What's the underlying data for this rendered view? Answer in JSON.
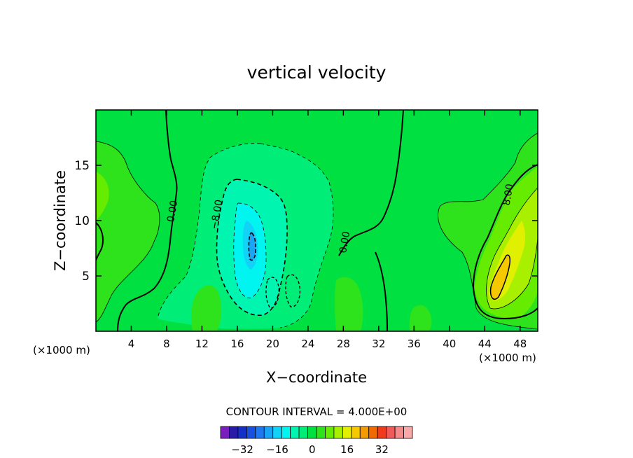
{
  "chart_data": {
    "type": "heatmap",
    "title": "vertical velocity",
    "xlabel": "X−coordinate",
    "ylabel": "Z−coordinate",
    "x_unit_left": "(×1000 m)",
    "x_unit_right": "(×1000 m)",
    "xlim": [
      0,
      50
    ],
    "ylim": [
      0,
      20
    ],
    "x_ticks": [
      4,
      8,
      12,
      16,
      20,
      24,
      28,
      32,
      36,
      40,
      44,
      48
    ],
    "y_ticks": [
      5,
      10,
      15
    ],
    "contour_interval_text": "CONTOUR INTERVAL = 4.000E+00",
    "contour_labels": [
      {
        "text": "0.00",
        "x": 9.0,
        "y": 10.8
      },
      {
        "text": "−8.00",
        "x": 14.0,
        "y": 10.5
      },
      {
        "text": "0.00",
        "x": 28.5,
        "y": 8.0
      },
      {
        "text": "8.00",
        "x": 47.0,
        "y": 12.3
      }
    ],
    "colorbar": {
      "levels": [
        -36,
        -32,
        -28,
        -24,
        -20,
        -16,
        -12,
        -8,
        -4,
        0,
        4,
        8,
        12,
        16,
        20,
        24,
        28,
        32,
        36
      ],
      "colors": [
        "#7a1fbd",
        "#2a1aa8",
        "#1530c8",
        "#1a50e0",
        "#1f78f0",
        "#1aa4f4",
        "#12d2f8",
        "#00f5f0",
        "#00f5b0",
        "#00ee78",
        "#00e040",
        "#2ee21c",
        "#66ec00",
        "#a8f000",
        "#e0f000",
        "#f5c800",
        "#f59a00",
        "#f06a00",
        "#f03a1c",
        "#f05a5a",
        "#f58a8a",
        "#f8a8a8"
      ],
      "tick_labels": [
        "−32",
        "−16",
        "0",
        "16",
        "32"
      ],
      "tick_values": [
        -32,
        -16,
        0,
        16,
        32
      ]
    },
    "field_features": [
      {
        "name": "downdraft",
        "center": [
          17.8,
          7.8
        ],
        "peak": -26
      },
      {
        "name": "updraft",
        "center": [
          45.4,
          5.2
        ],
        "peak": 18
      }
    ],
    "grid": false
  }
}
